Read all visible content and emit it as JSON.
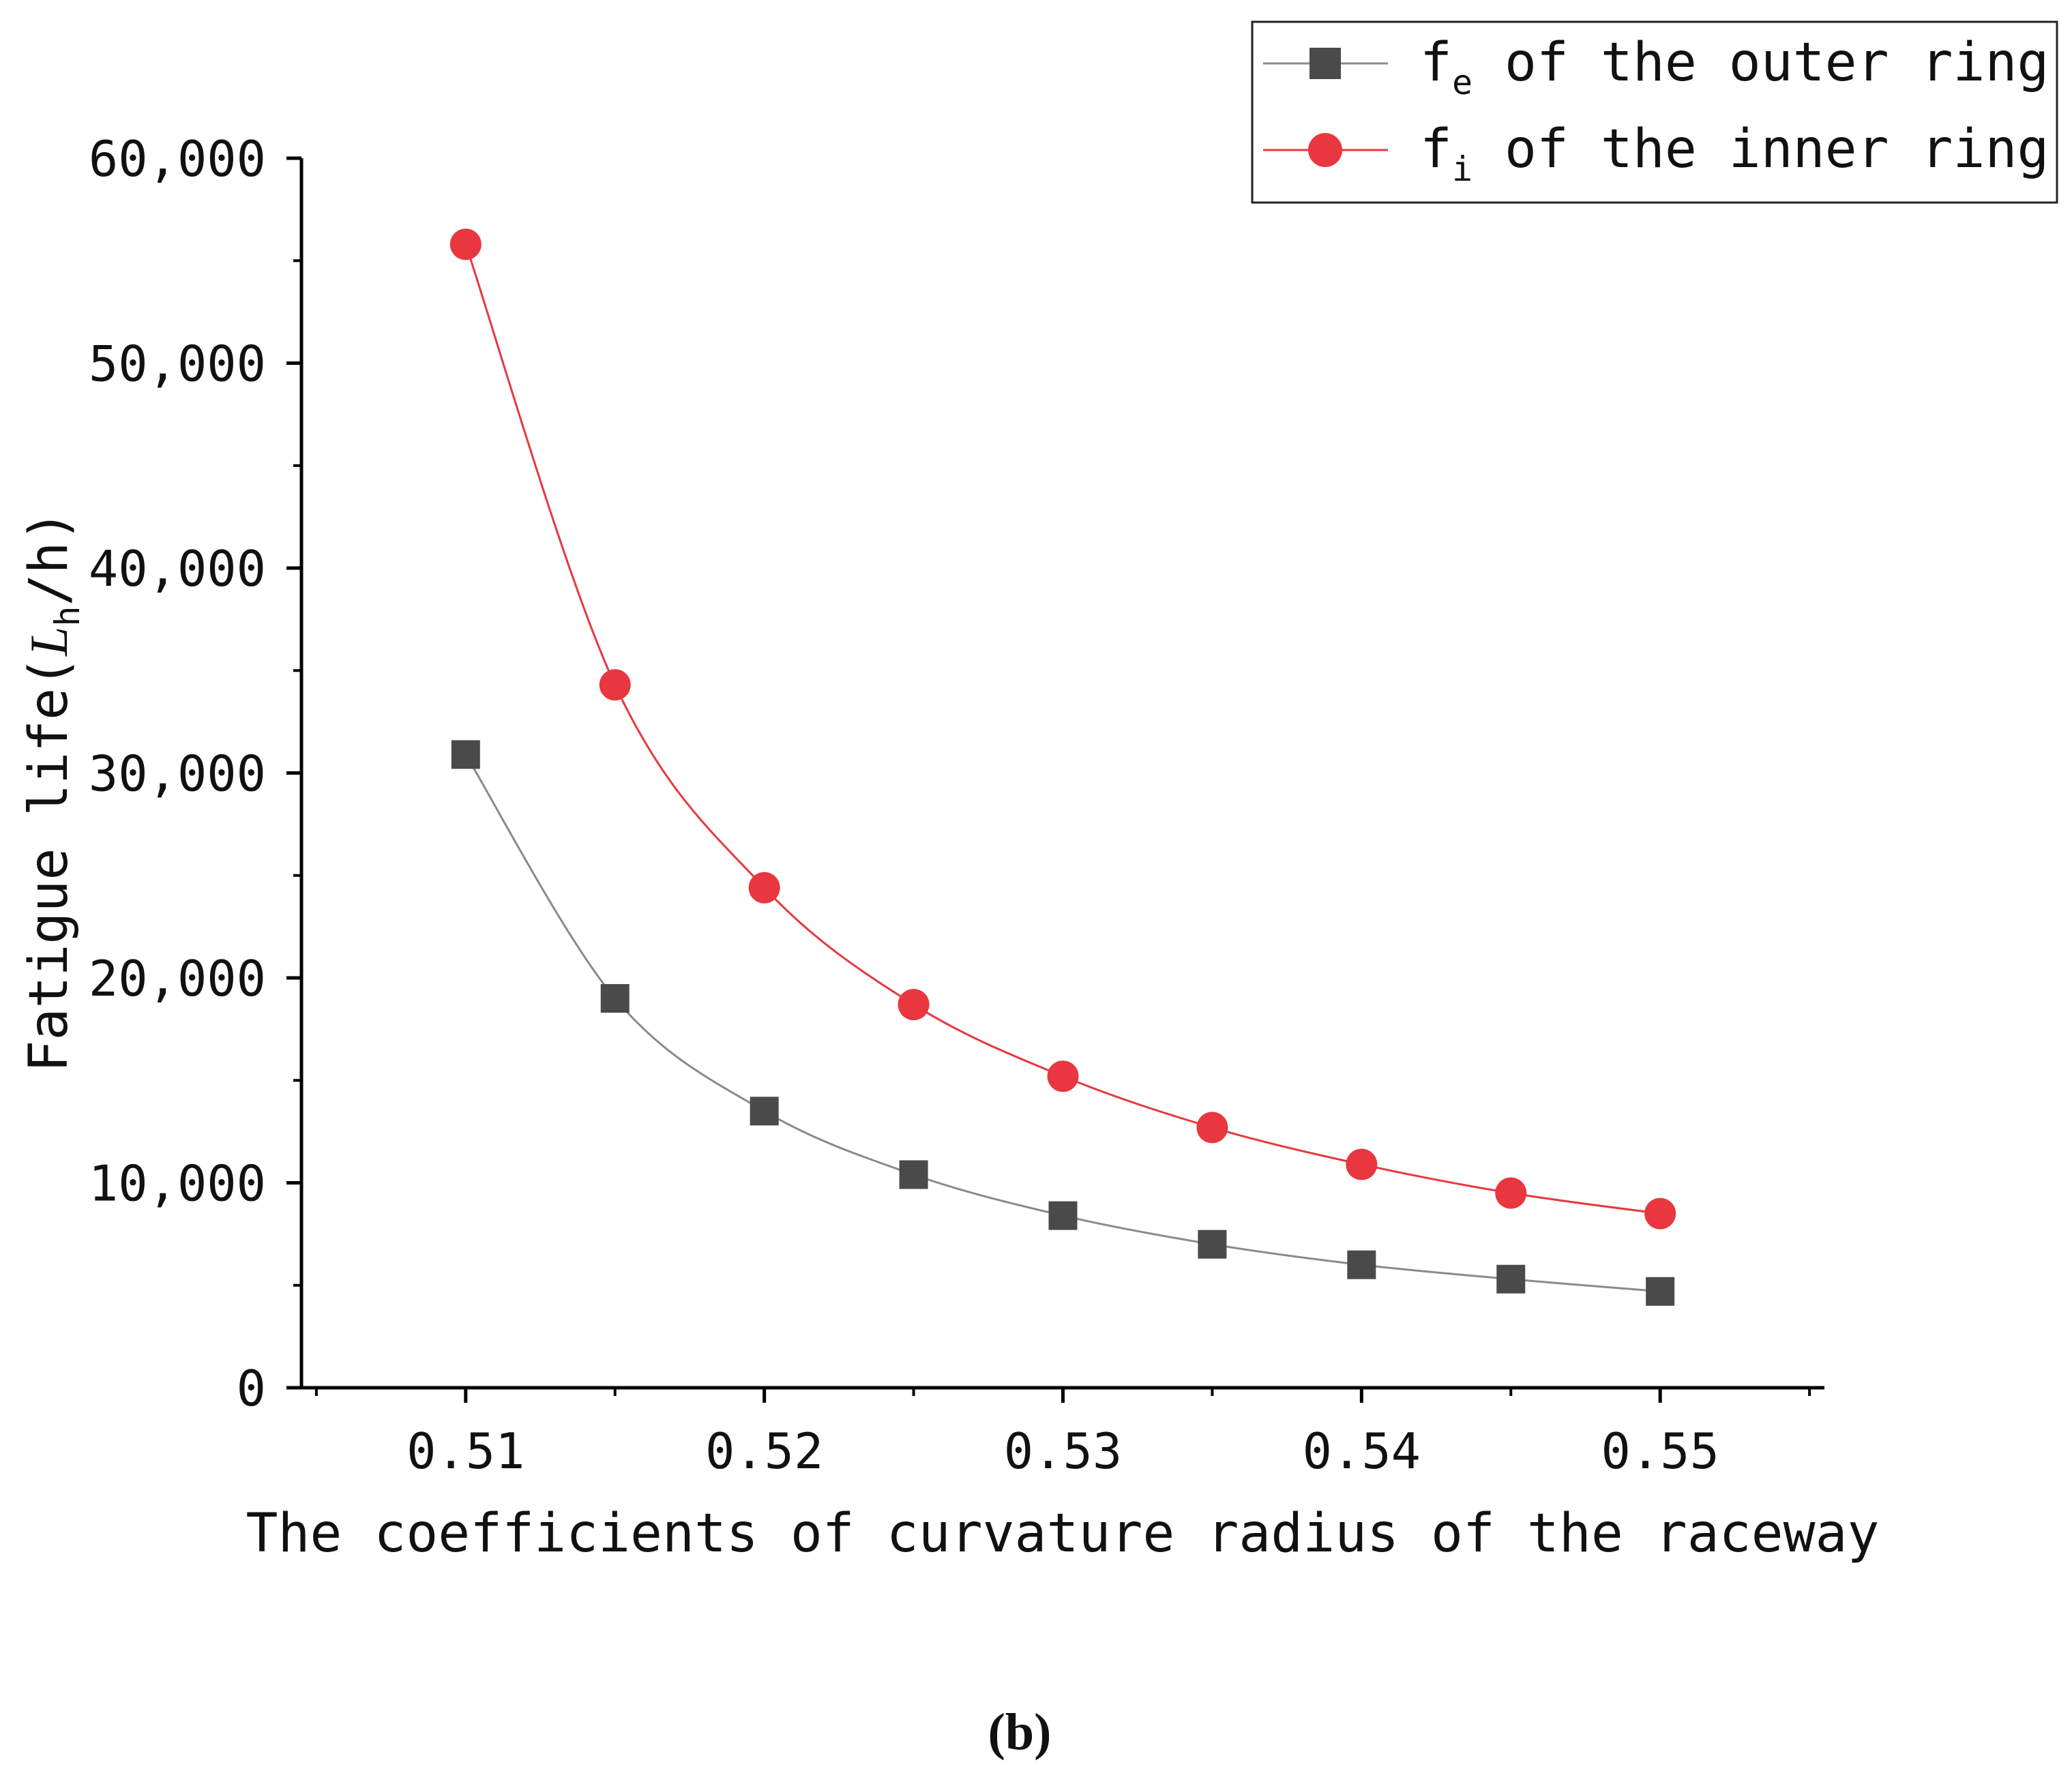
{
  "chart_data": {
    "type": "line",
    "xlabel": "The coefficients of curvature radius of the raceway",
    "ylabel_prefix": "Fatigue life(",
    "ylabel_var": "L",
    "ylabel_sub": "h",
    "ylabel_suffix": "/h)",
    "x": [
      0.51,
      0.515,
      0.52,
      0.525,
      0.53,
      0.535,
      0.54,
      0.545,
      0.55
    ],
    "xlim": [
      0.5045,
      0.5555
    ],
    "ylim": [
      0,
      60000
    ],
    "x_ticks": [
      0.51,
      0.52,
      0.53,
      0.54,
      0.55
    ],
    "x_tick_labels": [
      "0.51",
      "0.52",
      "0.53",
      "0.54",
      "0.55"
    ],
    "y_ticks": [
      0,
      10000,
      20000,
      30000,
      40000,
      50000,
      60000
    ],
    "y_tick_labels": [
      "0",
      "10,000",
      "20,000",
      "30,000",
      "40,000",
      "50,000",
      "60,000"
    ],
    "grid": false,
    "legend_position": "top-right",
    "series": [
      {
        "name_main": "f",
        "name_sub": "e",
        "name_rest": " of the outer ring",
        "marker": "square",
        "color": "#4a4a4a",
        "line_color": "#8a8a8a",
        "values": [
          30900,
          19000,
          13500,
          10400,
          8400,
          7000,
          6000,
          5300,
          4700
        ]
      },
      {
        "name_main": "f",
        "name_sub": "i",
        "name_rest": " of the inner ring",
        "marker": "circle",
        "color": "#e8373e",
        "line_color": "#e8373e",
        "values": [
          55800,
          34300,
          24400,
          18700,
          15200,
          12700,
          10900,
          9500,
          8500
        ]
      }
    ]
  },
  "caption": "(b)"
}
